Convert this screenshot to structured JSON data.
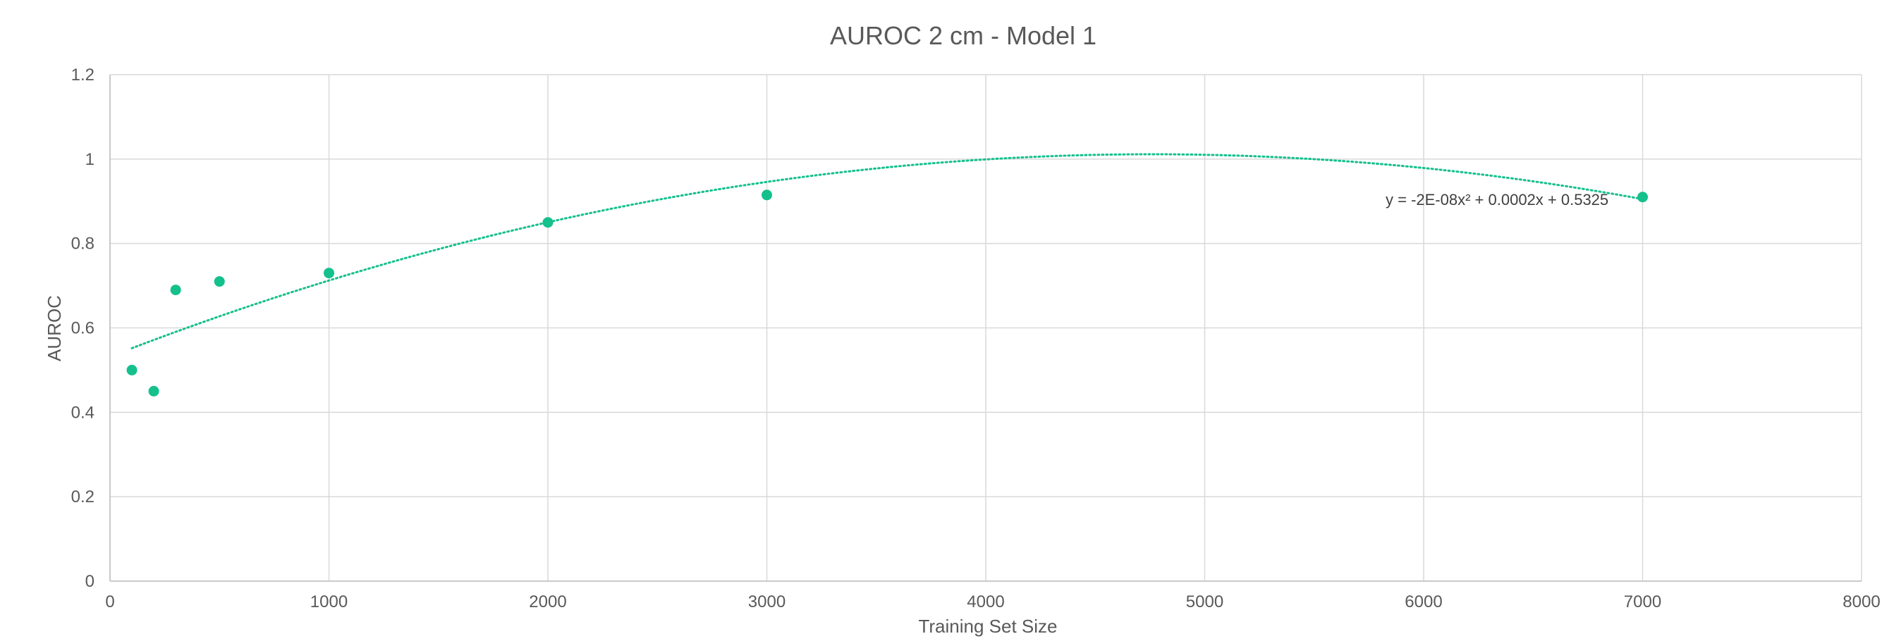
{
  "chart_data": {
    "type": "scatter",
    "title": "AUROC 2 cm - Model 1",
    "xlabel": "Training Set Size",
    "ylabel": "AUROC",
    "xlim": [
      0,
      8000
    ],
    "ylim": [
      0,
      1.2
    ],
    "x_ticks": [
      "0",
      "1000",
      "2000",
      "3000",
      "4000",
      "5000",
      "6000",
      "7000",
      "8000"
    ],
    "y_ticks": [
      "0",
      "0.2",
      "0.4",
      "0.6",
      "0.8",
      "1",
      "1.2"
    ],
    "grid": true,
    "legend": "none",
    "color": "#14c08c",
    "series": [
      {
        "points": [
          {
            "x": 100,
            "y": 0.5
          },
          {
            "x": 200,
            "y": 0.45
          },
          {
            "x": 300,
            "y": 0.69
          },
          {
            "x": 500,
            "y": 0.71
          },
          {
            "x": 1000,
            "y": 0.73
          },
          {
            "x": 2000,
            "y": 0.85
          },
          {
            "x": 3000,
            "y": 0.915
          },
          {
            "x": 7000,
            "y": 0.91
          }
        ]
      }
    ],
    "trendline": {
      "type": "polynomial",
      "order": 2,
      "style": "dotted",
      "equation": "y = -2E-08x² + 0.0002x + 0.5325",
      "x_range": [
        100,
        7000
      ]
    }
  }
}
